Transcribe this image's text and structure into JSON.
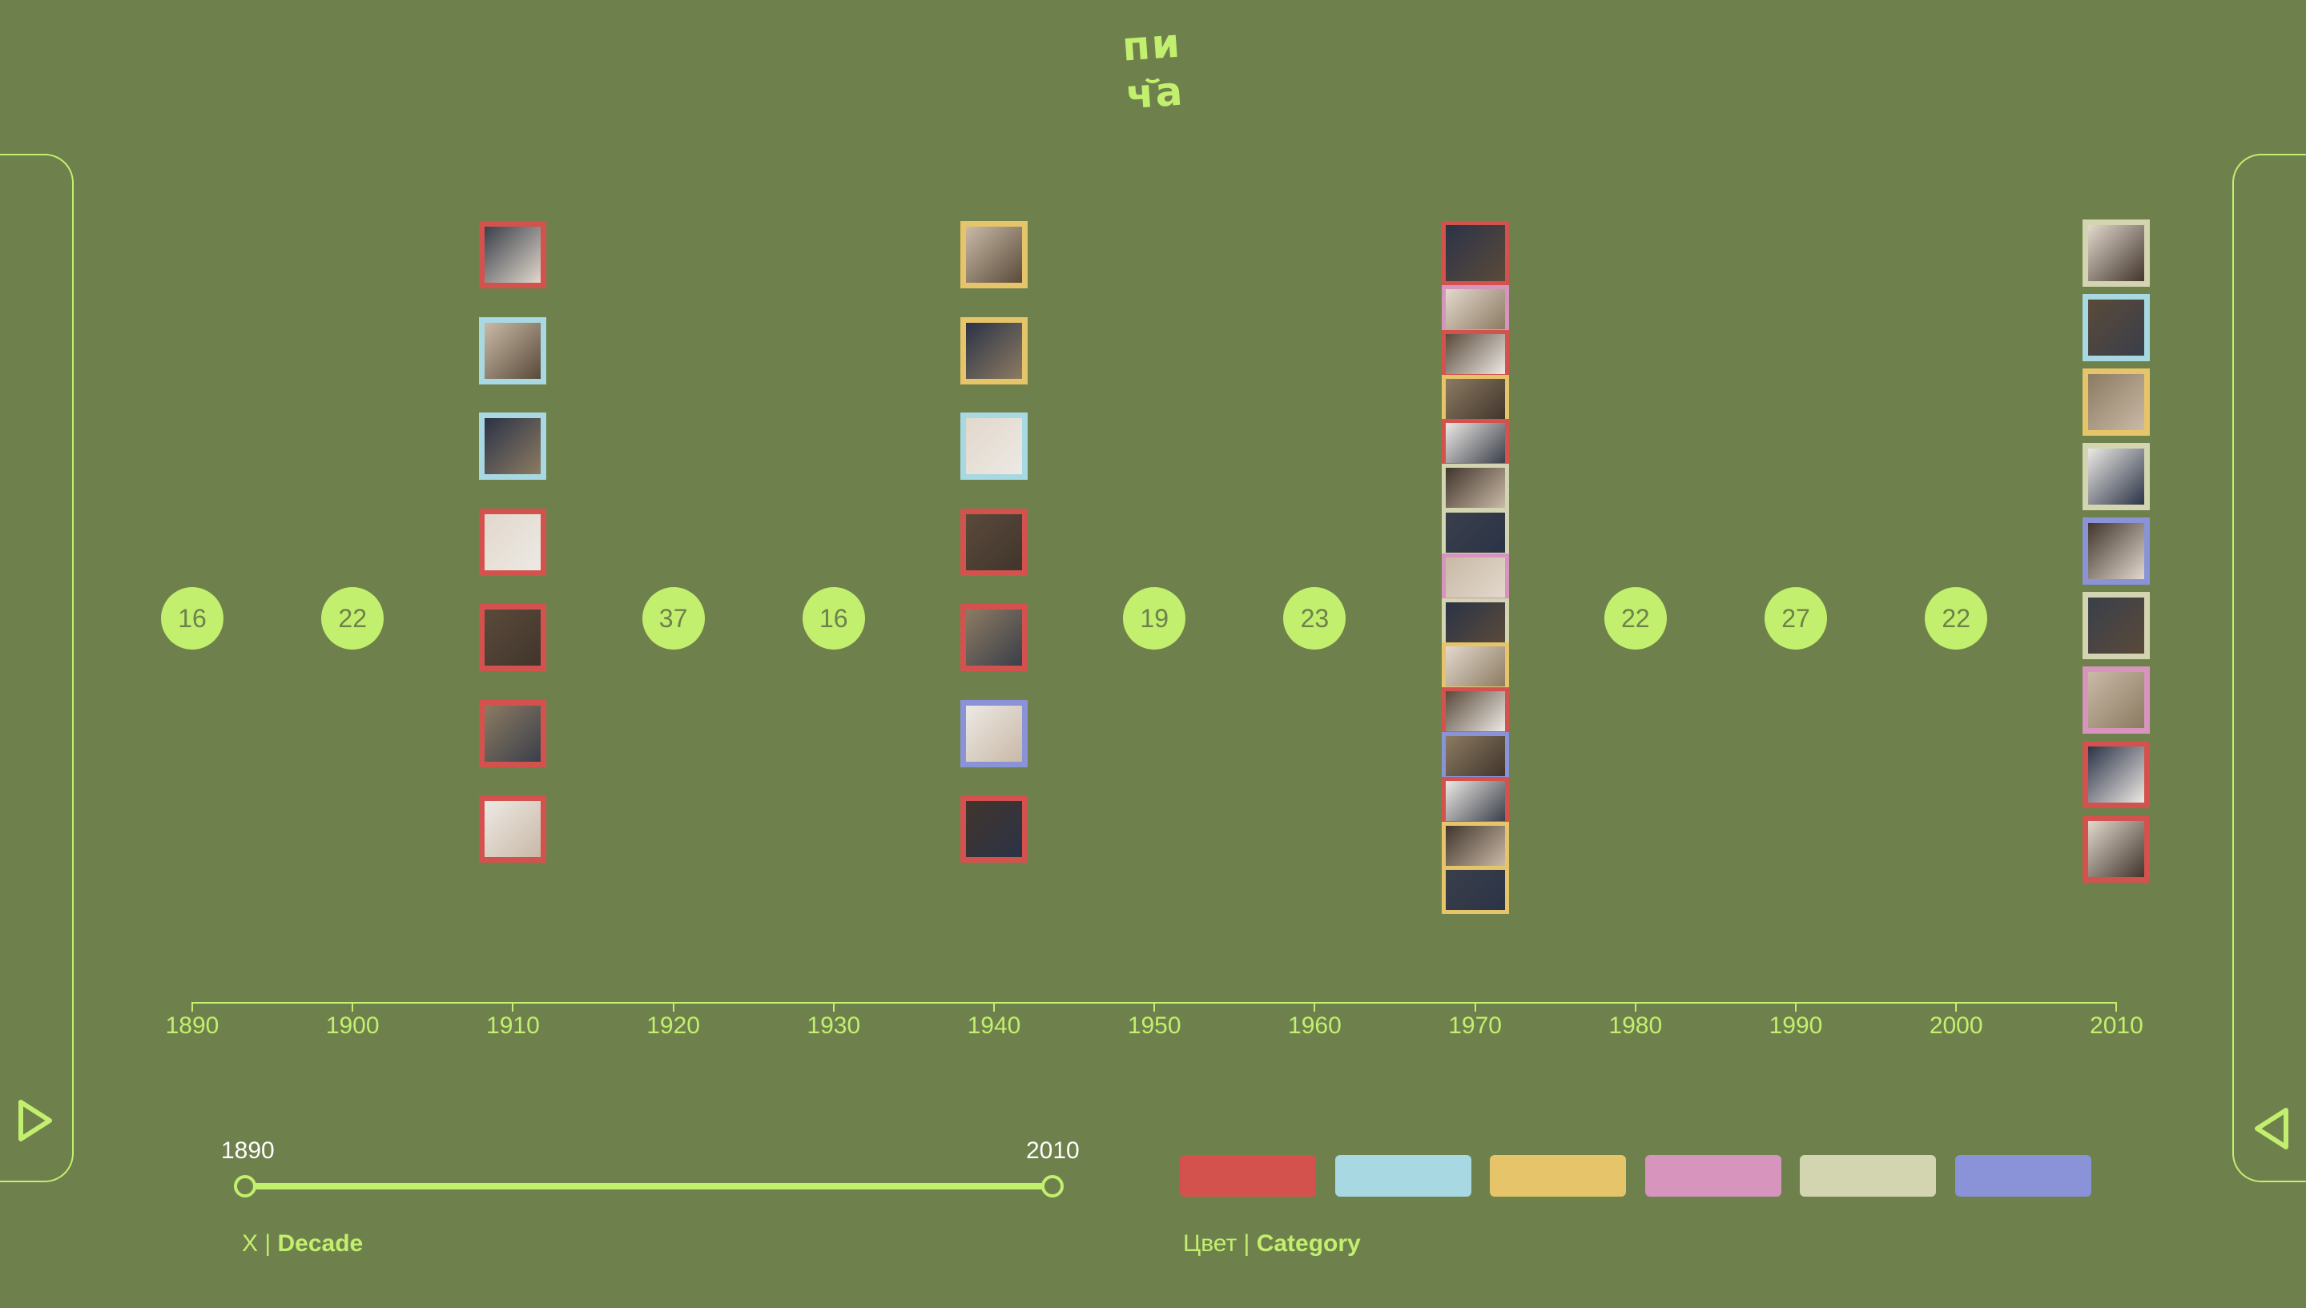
{
  "logo": {
    "text": "пи ча"
  },
  "timeline": {
    "ticks": [
      "1890",
      "1900",
      "1910",
      "1920",
      "1930",
      "1940",
      "1950",
      "1960",
      "1970",
      "1980",
      "1990",
      "2000",
      "2010"
    ],
    "counts": [
      {
        "decade": "1890",
        "count": "16"
      },
      {
        "decade": "1900",
        "count": "22"
      },
      {
        "decade": "1920",
        "count": "37"
      },
      {
        "decade": "1930",
        "count": "16"
      },
      {
        "decade": "1950",
        "count": "19"
      },
      {
        "decade": "1960",
        "count": "23"
      },
      {
        "decade": "1980",
        "count": "22"
      },
      {
        "decade": "1990",
        "count": "27"
      },
      {
        "decade": "2000",
        "count": "22"
      }
    ],
    "columns": [
      {
        "decade": "1910",
        "items": [
          "red",
          "blue",
          "blue",
          "red",
          "red",
          "red",
          "red"
        ]
      },
      {
        "decade": "1940",
        "items": [
          "yellow",
          "yellow",
          "blue",
          "red",
          "red",
          "violet",
          "red"
        ]
      },
      {
        "decade": "1970",
        "items": [
          "red",
          "pink",
          "red",
          "yellow",
          "red",
          "beige",
          "beige",
          "pink",
          "beige",
          "yellow",
          "red",
          "violet",
          "red",
          "yellow",
          "yellow"
        ]
      },
      {
        "decade": "2010",
        "items": [
          "beige",
          "blue",
          "yellow",
          "beige",
          "violet",
          "beige",
          "pink",
          "red",
          "red"
        ]
      }
    ]
  },
  "range": {
    "start": "1890",
    "end": "2010"
  },
  "axis_control": {
    "prefix": "X | ",
    "label": "Decade"
  },
  "color_control": {
    "prefix": "Цвет | ",
    "label": "Category"
  },
  "swatches": [
    {
      "name": "red",
      "color": "#d4524d"
    },
    {
      "name": "blue",
      "color": "#a8d8e2"
    },
    {
      "name": "yellow",
      "color": "#e6c46a"
    },
    {
      "name": "pink",
      "color": "#d795bd"
    },
    {
      "name": "beige",
      "color": "#d2d5b0"
    },
    {
      "name": "violet",
      "color": "#8a93d7"
    }
  ],
  "colors": {
    "background": "#6e804c",
    "accent": "#c3ef6e"
  }
}
